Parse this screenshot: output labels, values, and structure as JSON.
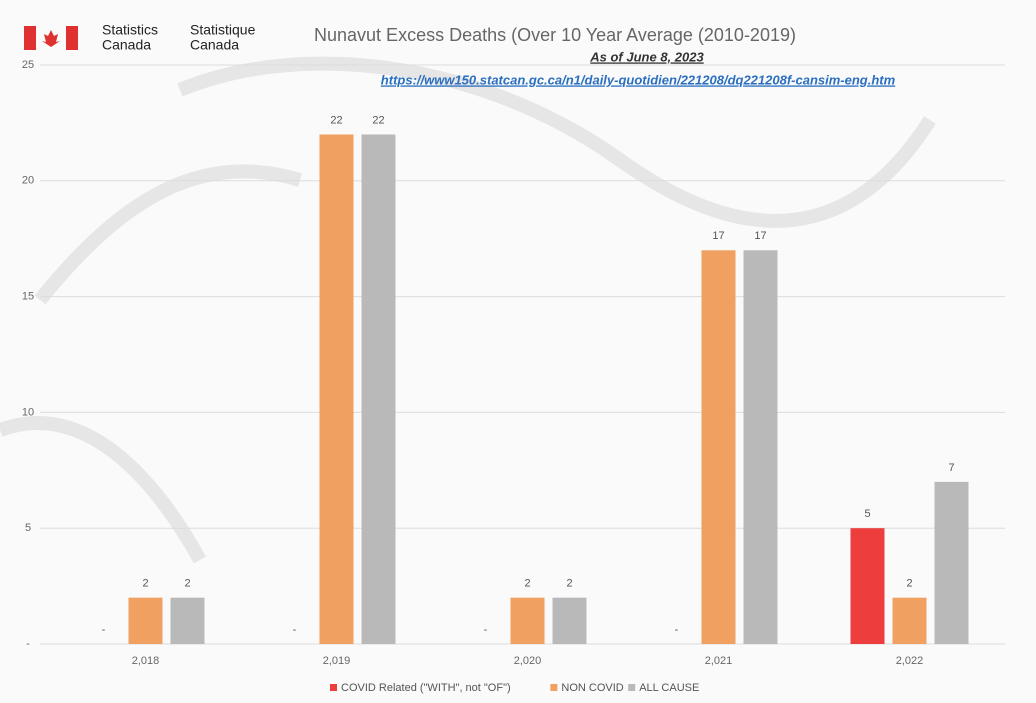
{
  "header": {
    "agency_en": [
      "Statistics",
      "Canada"
    ],
    "agency_fr": [
      "Statistique",
      "Canada"
    ]
  },
  "chart_data": {
    "type": "bar",
    "title": "Nunavut Excess Deaths (Over 10 Year Average (2010-2019)",
    "subtitle": "As of June 8, 2023",
    "source_url": "https://www150.statcan.gc.ca/n1/daily-quotidien/221208/dq221208f-cansim-eng.htm",
    "categories": [
      "2,018",
      "2,019",
      "2,020",
      "2,021",
      "2,022"
    ],
    "series": [
      {
        "name": "COVID Related (\"WITH\", not \"OF\")",
        "color": "#ee3d3d",
        "values": [
          0,
          0,
          0,
          0,
          5
        ],
        "value_labels": [
          "-",
          "-",
          "-",
          "-",
          "5"
        ]
      },
      {
        "name": "NON COVID",
        "color": "#f0a060",
        "values": [
          2,
          22,
          2,
          17,
          2
        ]
      },
      {
        "name": "ALL CAUSE",
        "color": "#b9b9b9",
        "values": [
          2,
          22,
          2,
          17,
          7
        ]
      }
    ],
    "ylim": [
      0,
      25
    ],
    "yticks": [
      {
        "value": 0,
        "label": "-"
      },
      5,
      10,
      15,
      20,
      25
    ],
    "grid": true,
    "legend": "bottom"
  }
}
